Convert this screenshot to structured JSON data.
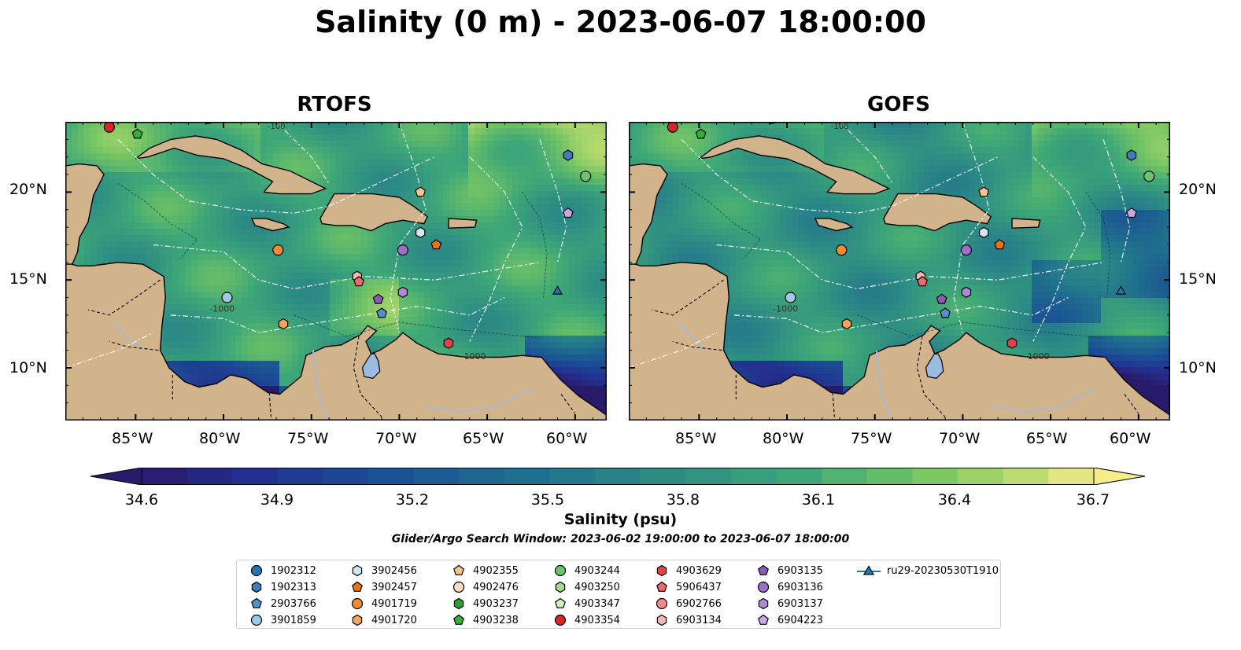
{
  "title": "Salinity (0 m) - 2023-06-07 18:00:00",
  "panels": [
    {
      "title": "RTOFS"
    },
    {
      "title": "GOFS"
    }
  ],
  "axes": {
    "lon_ticks": [
      "85°W",
      "80°W",
      "75°W",
      "70°W",
      "65°W",
      "60°W"
    ],
    "lat_ticks": [
      "20°N",
      "15°N",
      "10°N"
    ]
  },
  "colorbar": {
    "label": "Salinity (psu)",
    "ticks": [
      "34.6",
      "34.9",
      "35.2",
      "35.5",
      "35.8",
      "36.1",
      "36.4",
      "36.7"
    ],
    "range": [
      34.6,
      36.7
    ],
    "colormap": "haline",
    "extend": "both"
  },
  "search_window": "Glider/Argo Search Window: 2023-06-02 19:00:00 to 2023-06-07 18:00:00",
  "contour_labels": [
    "-100",
    "-1000"
  ],
  "colors": {
    "land": "#d2b48c",
    "lake": "#9bbce0",
    "river": "#a8b8d0"
  },
  "legend": [
    {
      "label": "1902312",
      "marker": "circle",
      "color": "#1f77b4"
    },
    {
      "label": "1902313",
      "marker": "hexagon",
      "color": "#3b7fc0"
    },
    {
      "label": "2903766",
      "marker": "pentagon",
      "color": "#4f93cf"
    },
    {
      "label": "3901859",
      "marker": "circle",
      "color": "#9ecae9"
    },
    {
      "label": "3902456",
      "marker": "hexagon",
      "color": "#cfe7f7"
    },
    {
      "label": "3902457",
      "marker": "pentagon",
      "color": "#e6750f"
    },
    {
      "label": "4901719",
      "marker": "circle",
      "color": "#f28a2e"
    },
    {
      "label": "4901720",
      "marker": "hexagon",
      "color": "#f6a55a"
    },
    {
      "label": "4902355",
      "marker": "pentagon",
      "color": "#f8c490"
    },
    {
      "label": "4902476",
      "marker": "circle",
      "color": "#fbdcc0"
    },
    {
      "label": "4903237",
      "marker": "hexagon",
      "color": "#2ca02c"
    },
    {
      "label": "4903238",
      "marker": "pentagon",
      "color": "#35b035"
    },
    {
      "label": "4903244",
      "marker": "circle",
      "color": "#6cc46c"
    },
    {
      "label": "4903250",
      "marker": "hexagon",
      "color": "#9fdc90"
    },
    {
      "label": "4903347",
      "marker": "pentagon",
      "color": "#ccf2c0"
    },
    {
      "label": "4903354",
      "marker": "circle",
      "color": "#d62728"
    },
    {
      "label": "4903629",
      "marker": "hexagon",
      "color": "#e0444a"
    },
    {
      "label": "5906437",
      "marker": "pentagon",
      "color": "#ec6a6c"
    },
    {
      "label": "6902766",
      "marker": "circle",
      "color": "#f48a88"
    },
    {
      "label": "6903134",
      "marker": "hexagon",
      "color": "#f7b8b8"
    },
    {
      "label": "6903135",
      "marker": "pentagon",
      "color": "#8a5cb8"
    },
    {
      "label": "6903136",
      "marker": "circle",
      "color": "#9c70c8"
    },
    {
      "label": "6903137",
      "marker": "hexagon",
      "color": "#b08ad8"
    },
    {
      "label": "6904223",
      "marker": "pentagon",
      "color": "#c6a8e6"
    },
    {
      "label": "ru29-20230530T1910",
      "marker": "triangle-line",
      "color": "#1f77b4"
    }
  ],
  "floats": [
    {
      "id": "4903354",
      "lon": -86.5,
      "lat": 23.7
    },
    {
      "id": "4903238",
      "lon": -84.9,
      "lat": 23.3
    },
    {
      "id": "1902313",
      "lon": -60.4,
      "lat": 22.1
    },
    {
      "id": "4903244",
      "lon": -59.4,
      "lat": 20.9
    },
    {
      "id": "4902355",
      "lon": -68.8,
      "lat": 20.0
    },
    {
      "id": "6904223",
      "lon": -60.4,
      "lat": 18.8
    },
    {
      "id": "3902456",
      "lon": -68.8,
      "lat": 17.7
    },
    {
      "id": "3902457",
      "lon": -67.9,
      "lat": 17.0
    },
    {
      "id": "4901719",
      "lon": -76.9,
      "lat": 16.7
    },
    {
      "id": "6903136",
      "lon": -69.8,
      "lat": 16.7
    },
    {
      "id": "6903134",
      "lon": -72.4,
      "lat": 15.2
    },
    {
      "id": "5906437",
      "lon": -72.3,
      "lat": 14.9
    },
    {
      "id": "6903137",
      "lon": -69.8,
      "lat": 14.3
    },
    {
      "id": "3901859",
      "lon": -79.8,
      "lat": 14.0
    },
    {
      "id": "6903135",
      "lon": -71.2,
      "lat": 13.9
    },
    {
      "id": "2903766",
      "lon": -71.0,
      "lat": 13.1
    },
    {
      "id": "4901720",
      "lon": -76.6,
      "lat": 12.5
    },
    {
      "id": "4903629",
      "lon": -67.2,
      "lat": 11.4
    },
    {
      "id": "ru29-20230530T1910",
      "lon": -61.0,
      "lat": 14.4
    }
  ]
}
